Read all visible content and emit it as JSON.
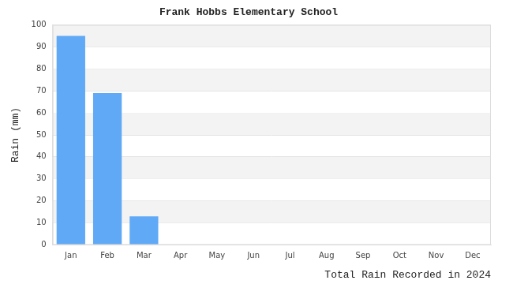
{
  "chart_data": {
    "type": "bar",
    "title": "Frank Hobbs Elementary School",
    "x_label": "Total Rain Recorded in 2024",
    "y_label": "Rain (mm)",
    "categories": [
      "Jan",
      "Feb",
      "Mar",
      "Apr",
      "May",
      "Jun",
      "Jul",
      "Aug",
      "Sep",
      "Oct",
      "Nov",
      "Dec"
    ],
    "values": [
      95,
      69,
      13,
      0,
      0,
      0,
      0,
      0,
      0,
      0,
      0,
      0
    ],
    "color": "#60a9f6",
    "ylim": [
      0,
      100
    ],
    "yticks": [
      0,
      10,
      20,
      30,
      40,
      50,
      60,
      70,
      80,
      90,
      100
    ],
    "grid": true
  }
}
